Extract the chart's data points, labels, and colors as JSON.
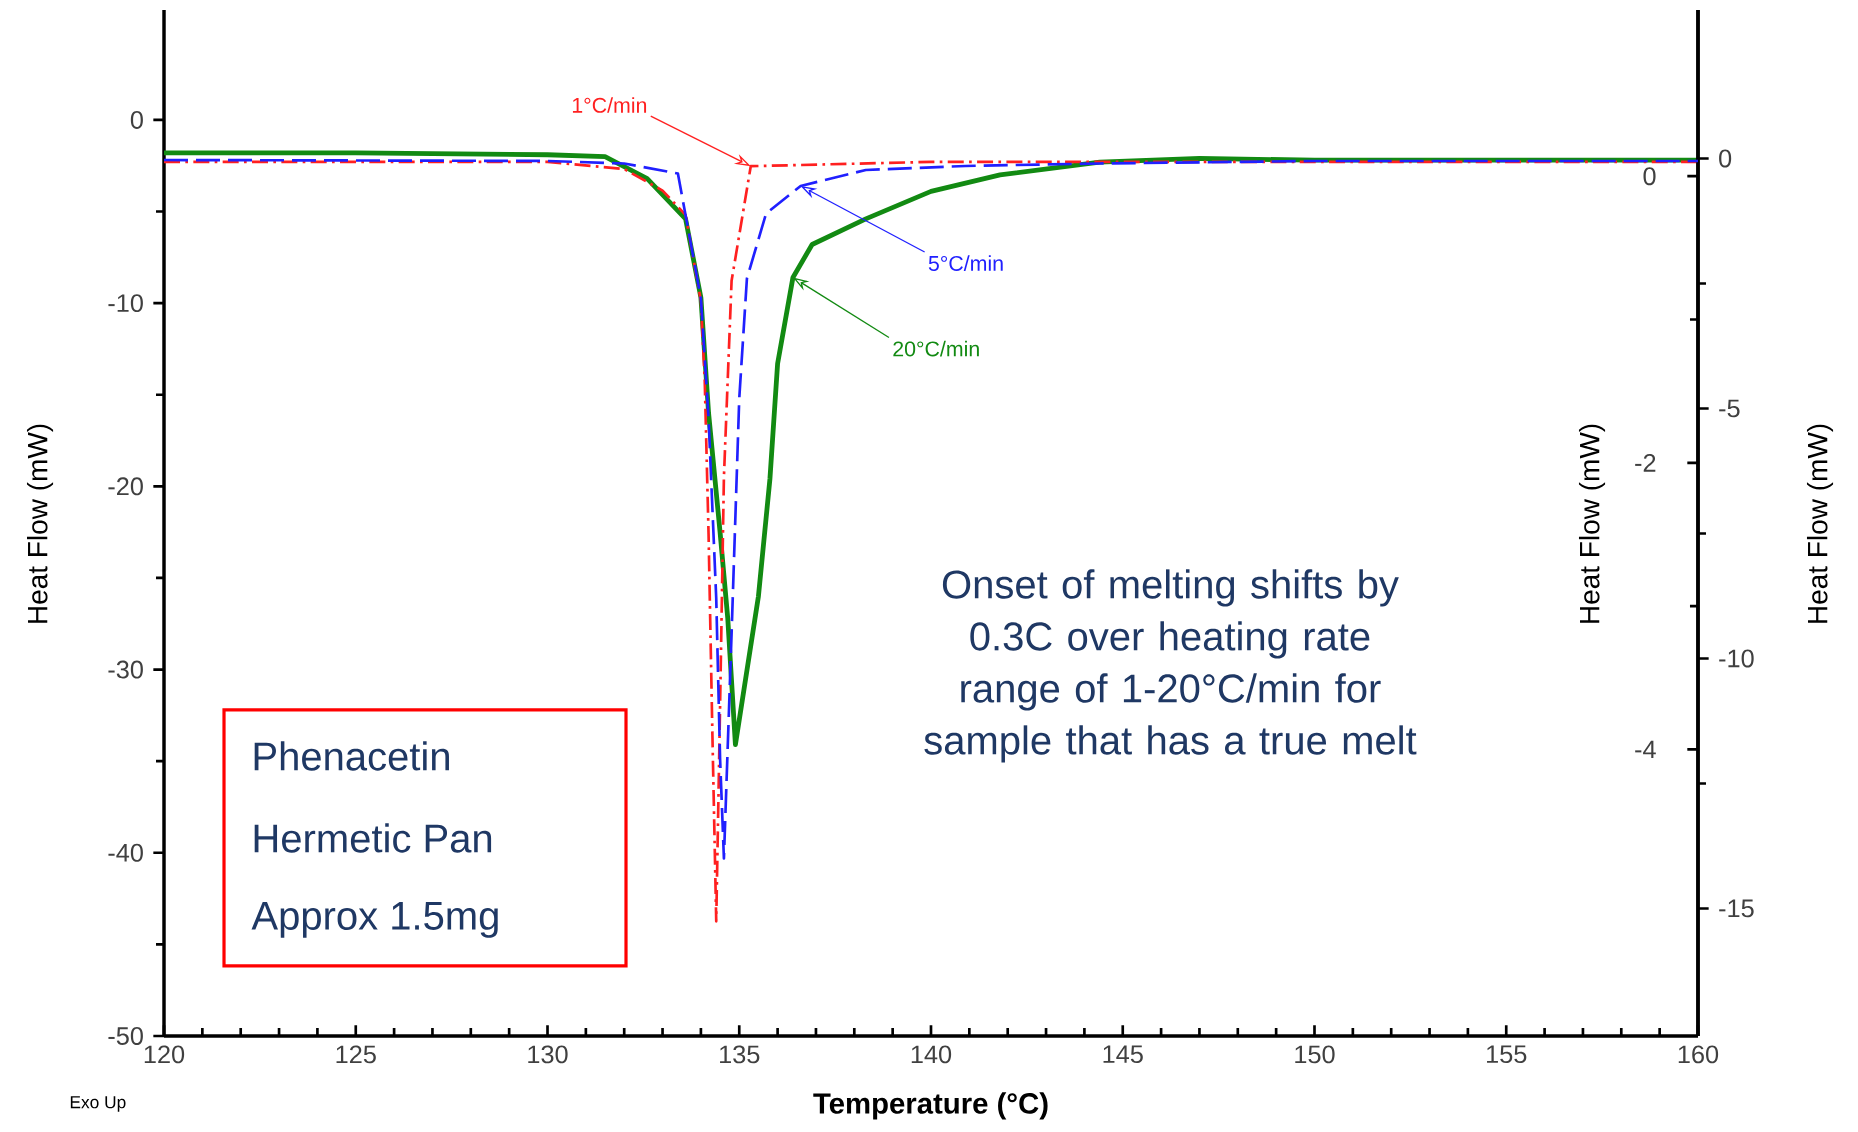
{
  "chart_data": {
    "type": "line",
    "xlabel": "Temperature  (°C)",
    "ylabel": "Heat Flow (mW)",
    "y2label": "Heat Flow (mW)",
    "y3label": "Heat Flow (mW)",
    "xlim": [
      120,
      160
    ],
    "xticks": [
      120,
      125,
      130,
      135,
      140,
      145,
      150,
      155,
      160
    ],
    "ylim": [
      -50,
      6
    ],
    "yticks": [
      -50,
      -40,
      -30,
      -20,
      -10,
      0
    ],
    "y2lim": [
      -6.0,
      1.16
    ],
    "y2ticks": [
      -4,
      -2,
      0
    ],
    "y3lim": [
      -17.55,
      2.97
    ],
    "y3ticks": [
      -15,
      -10,
      -5,
      0
    ],
    "grid": false,
    "marker": "none",
    "series": [
      {
        "name": "1°C/min",
        "color": "#ff2020",
        "axis": "y2",
        "line_style": "dashdot",
        "x": [
          120,
          130,
          132,
          133,
          133.6,
          134.0,
          134.1,
          134.2,
          134.3,
          134.4,
          134.5,
          134.6,
          134.8,
          135.3,
          140,
          150,
          160
        ],
        "values": [
          0.1,
          0.1,
          0.05,
          -0.1,
          -0.27,
          -0.87,
          -1.43,
          -2.5,
          -3.9,
          -5.2,
          -3.7,
          -2.1,
          -0.73,
          0.07,
          0.1,
          0.1,
          0.1
        ]
      },
      {
        "name": "5°C/min",
        "color": "#2020ff",
        "axis": "y3",
        "line_style": "dashed",
        "x": [
          120,
          130,
          132,
          133.4,
          134.0,
          134.2,
          134.4,
          134.5,
          134.6,
          134.8,
          135.0,
          135.2,
          135.7,
          136.6,
          138.3,
          140.9,
          144.4,
          150,
          160
        ],
        "values": [
          -0.03,
          -0.05,
          -0.1,
          -0.3,
          -2.8,
          -5.2,
          -8.8,
          -12.0,
          -14.0,
          -9.5,
          -4.8,
          -2.4,
          -1.1,
          -0.55,
          -0.23,
          -0.15,
          -0.1,
          -0.05,
          -0.05
        ]
      },
      {
        "name": "20°C/min",
        "color": "#128a12",
        "line_style": "solid",
        "x": [
          120,
          125,
          130,
          131.5,
          132.6,
          133.6,
          134.0,
          134.2,
          134.5,
          134.7,
          134.9,
          135.5,
          135.8,
          136.0,
          136.4,
          136.9,
          138.3,
          140.0,
          141.8,
          144.4,
          147,
          150,
          155,
          160
        ],
        "values": [
          -1.8,
          -1.8,
          -1.9,
          -2.0,
          -3.2,
          -5.4,
          -9.7,
          -16,
          -22.5,
          -27.2,
          -34.1,
          -26,
          -19.6,
          -13.3,
          -8.6,
          -6.8,
          -5.4,
          -3.9,
          -3.0,
          -2.3,
          -2.1,
          -2.2,
          -2.2,
          -2.2
        ]
      }
    ],
    "annotations": [
      "Onset of melting shifts by 0.3C over heating rate range of 1-20°C/min for sample that has a true melt",
      "Phenacetin",
      "Hermetic Pan",
      "Approx 1.5mg",
      "Exo Up"
    ]
  }
}
